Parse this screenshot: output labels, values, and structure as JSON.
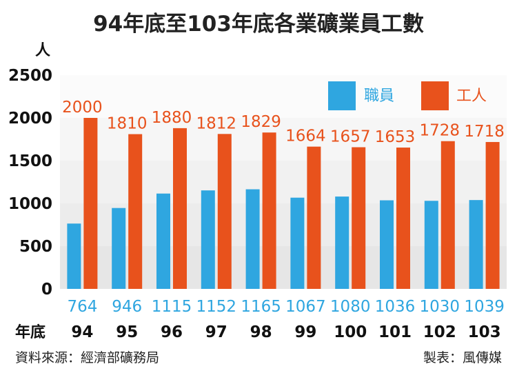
{
  "chart_data": {
    "type": "bar",
    "title": "94年底至103年底各業礦業員工數",
    "ylabel": "人",
    "xlabel": "年底",
    "ylim": [
      0,
      2500
    ],
    "yticks": [
      0,
      500,
      1000,
      1500,
      2000,
      2500
    ],
    "categories": [
      "94",
      "95",
      "96",
      "97",
      "98",
      "99",
      "100",
      "101",
      "102",
      "103"
    ],
    "series": [
      {
        "name": "職員",
        "color": "#2fa6e0",
        "values": [
          764,
          946,
          1115,
          1152,
          1165,
          1067,
          1080,
          1036,
          1030,
          1039
        ]
      },
      {
        "name": "工人",
        "color": "#e8521c",
        "values": [
          2000,
          1810,
          1880,
          1812,
          1829,
          1664,
          1657,
          1653,
          1728,
          1718
        ]
      }
    ],
    "legend": "top-right",
    "grid": true
  },
  "footer": {
    "source": "資料來源：經濟部礦務局",
    "credit": "製表：風傳媒"
  }
}
